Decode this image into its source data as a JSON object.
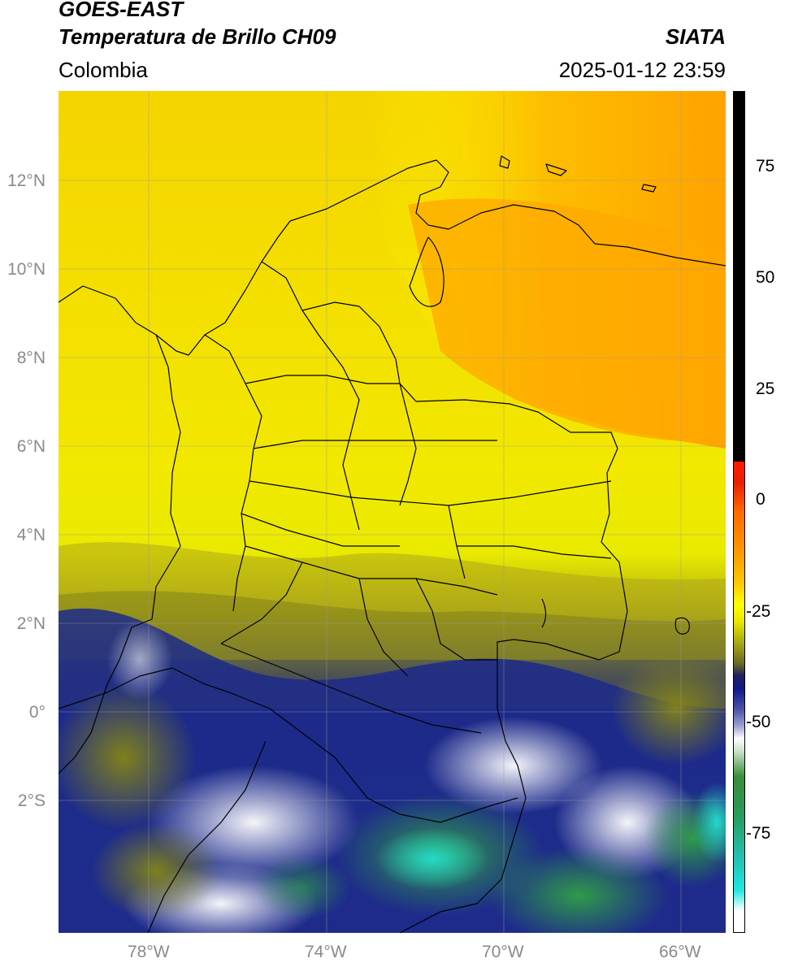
{
  "header": {
    "satellite": "GOES-EAST",
    "product": "Temperatura de Brillo CH09",
    "region": "Colombia",
    "agency": "SIATA",
    "datetime": "2025-01-12 23:59"
  },
  "map": {
    "lat_labels": [
      "12°N",
      "10°N",
      "8°N",
      "6°N",
      "4°N",
      "2°N",
      "0°",
      "2°S"
    ],
    "lon_labels": [
      "78°W",
      "74°W",
      "70°W",
      "66°W"
    ],
    "extent": {
      "lon": [
        -80,
        -65
      ],
      "lat": [
        -5,
        14
      ]
    },
    "gridlines": true
  },
  "colorbar": {
    "ticks": [
      "75",
      "50",
      "25",
      "0",
      "-25",
      "-50",
      "-75"
    ],
    "range": [
      -95,
      90
    ],
    "colors": {
      "warm_black": "#000000",
      "red": "#e8120a",
      "orange": "#ffa500",
      "yellow": "#ffff00",
      "olive": "#808000",
      "navy": "#101a80",
      "white": "#ffffff",
      "green": "#2f8a2f",
      "cyan": "#20dcd8"
    }
  }
}
